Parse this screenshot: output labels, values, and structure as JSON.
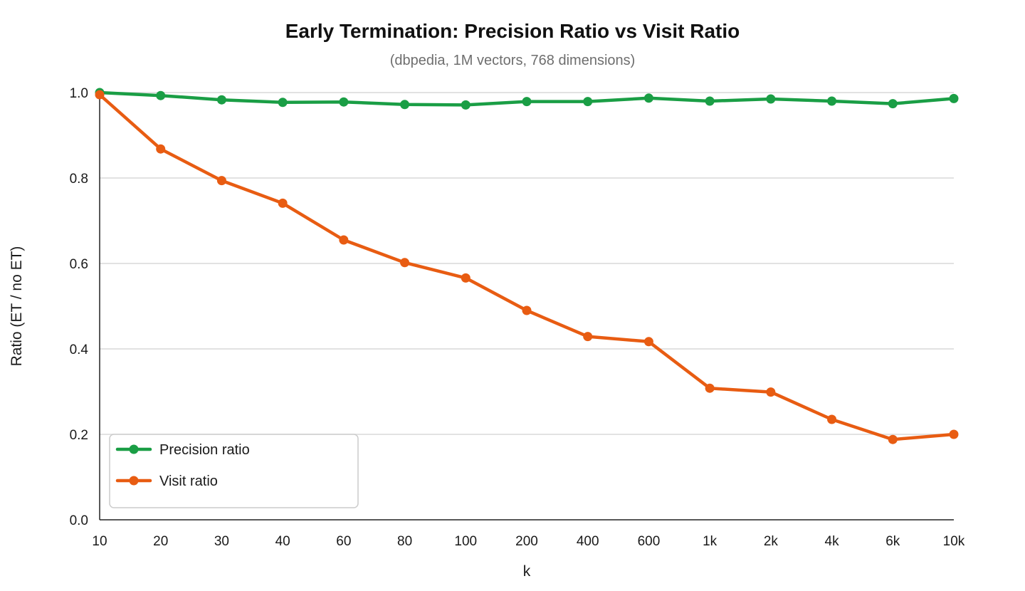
{
  "chart_data": {
    "type": "line",
    "title": "Early Termination: Precision Ratio vs Visit Ratio",
    "subtitle": "(dbpedia, 1M vectors, 768 dimensions)",
    "xlabel": "k",
    "ylabel": "Ratio (ET / no ET)",
    "categories": [
      "10",
      "20",
      "30",
      "40",
      "60",
      "80",
      "100",
      "200",
      "400",
      "600",
      "1k",
      "2k",
      "4k",
      "6k",
      "10k"
    ],
    "ylim": [
      0,
      1.0
    ],
    "yticks": [
      "0.0",
      "0.2",
      "0.4",
      "0.6",
      "0.8",
      "1.0"
    ],
    "grid": true,
    "legend_position": "bottom-left",
    "series": [
      {
        "name": "Precision ratio",
        "color": "#1a9e45",
        "values": [
          1.0,
          0.993,
          0.983,
          0.977,
          0.978,
          0.972,
          0.971,
          0.979,
          0.979,
          0.987,
          0.98,
          0.985,
          0.98,
          0.974,
          0.986
        ]
      },
      {
        "name": "Visit ratio",
        "color": "#e85c12",
        "values": [
          0.995,
          0.868,
          0.794,
          0.741,
          0.655,
          0.602,
          0.566,
          0.49,
          0.429,
          0.417,
          0.308,
          0.299,
          0.235,
          0.188,
          0.2
        ]
      }
    ]
  }
}
